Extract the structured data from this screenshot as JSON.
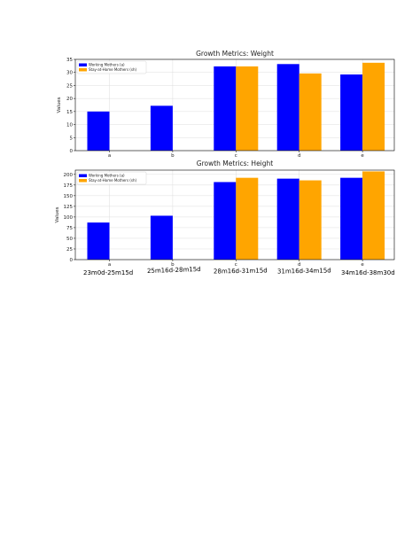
{
  "chart_data": [
    {
      "type": "bar",
      "title": "Growth Metrics: Weight",
      "xlabel": "",
      "ylabel": "Values",
      "categories": [
        "a",
        "b",
        "c",
        "d",
        "e"
      ],
      "ylim": [
        0,
        35
      ],
      "yticks": [
        0,
        5,
        10,
        15,
        20,
        25,
        30,
        35
      ],
      "grid": true,
      "legend_position": "top-left",
      "series": [
        {
          "name": "Working Mothers (a)",
          "color": "#0000ff",
          "values": [
            15,
            17.2,
            32.3,
            33.2,
            29.2
          ]
        },
        {
          "name": "Stay-at-Home Mothers (sh)",
          "color": "#ffa500",
          "values": [
            null,
            null,
            32.3,
            29.6,
            33.7
          ]
        }
      ]
    },
    {
      "type": "bar",
      "title": "Growth Metrics: Height",
      "xlabel": "",
      "ylabel": "Values",
      "categories": [
        "a",
        "b",
        "c",
        "d",
        "e"
      ],
      "ylim": [
        0,
        210
      ],
      "yticks": [
        0,
        25,
        50,
        75,
        100,
        125,
        150,
        175,
        200
      ],
      "grid": true,
      "legend_position": "top-left",
      "series": [
        {
          "name": "Working Mothers (a)",
          "color": "#0000ff",
          "values": [
            87,
            103,
            182,
            190,
            192
          ]
        },
        {
          "name": "Stay-at-Home Mothers (sh)",
          "color": "#ffa500",
          "values": [
            null,
            null,
            192,
            186,
            207
          ]
        }
      ]
    }
  ],
  "age_ranges": [
    "23m0d-25m15d",
    "25m16d-28m15d",
    "28m16d-31m15d",
    "31m16d-34m15d",
    "34m16d-38m30d"
  ]
}
